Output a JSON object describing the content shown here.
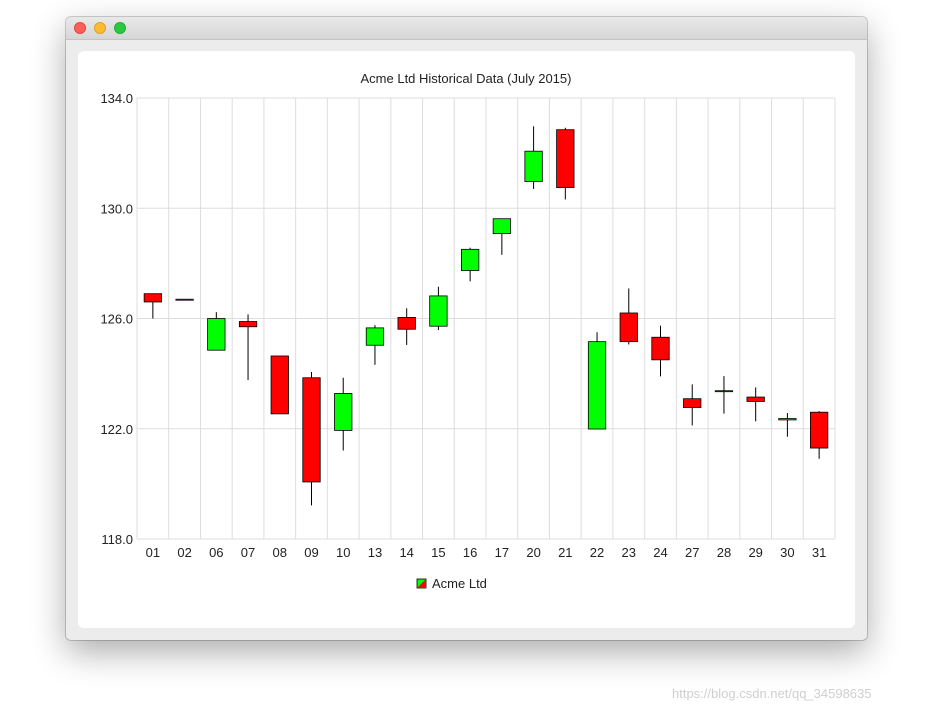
{
  "window": {
    "controls": [
      "close-button",
      "minimize-button",
      "maximize-button"
    ]
  },
  "watermark": "https://blog.csdn.net/qq_34598635",
  "chart_data": {
    "type": "candlestick",
    "title": "Acme Ltd Historical Data (July 2015)",
    "ylim": [
      118.0,
      134.0
    ],
    "yticks": [
      "134.0",
      "130.0",
      "126.0",
      "122.0",
      "118.0"
    ],
    "ytick_values": [
      134,
      130,
      126,
      122,
      118
    ],
    "grid": true,
    "legend": {
      "label": "Acme Ltd",
      "placement": "bottom-center"
    },
    "colors": {
      "increasing": "#00ff00",
      "decreasing": "#ff0000",
      "outline": "#000000",
      "grid": "#dddddd"
    },
    "candles": [
      {
        "x": "01",
        "open": 126.9,
        "high": 126.9,
        "low": 126.0,
        "close": 126.6
      },
      {
        "x": "02",
        "open": 126.7,
        "high": 126.7,
        "low": 126.7,
        "close": 126.7
      },
      {
        "x": "06",
        "open": 124.85,
        "high": 126.23,
        "low": 124.85,
        "close": 126.0
      },
      {
        "x": "07",
        "open": 125.89,
        "high": 126.15,
        "low": 123.77,
        "close": 125.7
      },
      {
        "x": "08",
        "open": 124.64,
        "high": 124.64,
        "low": 122.54,
        "close": 122.54
      },
      {
        "x": "09",
        "open": 123.85,
        "high": 124.06,
        "low": 119.22,
        "close": 120.07
      },
      {
        "x": "10",
        "open": 121.94,
        "high": 123.85,
        "low": 121.21,
        "close": 123.28
      },
      {
        "x": "13",
        "open": 125.03,
        "high": 125.76,
        "low": 124.32,
        "close": 125.66
      },
      {
        "x": "14",
        "open": 126.04,
        "high": 126.37,
        "low": 125.04,
        "close": 125.61
      },
      {
        "x": "15",
        "open": 125.72,
        "high": 127.15,
        "low": 125.58,
        "close": 126.82
      },
      {
        "x": "16",
        "open": 127.74,
        "high": 128.57,
        "low": 127.35,
        "close": 128.51
      },
      {
        "x": "17",
        "open": 129.08,
        "high": 129.62,
        "low": 128.31,
        "close": 129.62
      },
      {
        "x": "20",
        "open": 130.97,
        "high": 132.97,
        "low": 130.7,
        "close": 132.07
      },
      {
        "x": "21",
        "open": 132.85,
        "high": 132.92,
        "low": 130.32,
        "close": 130.75
      },
      {
        "x": "22",
        "open": 121.99,
        "high": 125.5,
        "low": 121.99,
        "close": 125.16
      },
      {
        "x": "23",
        "open": 126.2,
        "high": 127.09,
        "low": 125.06,
        "close": 125.16
      },
      {
        "x": "24",
        "open": 125.32,
        "high": 125.74,
        "low": 123.9,
        "close": 124.5
      },
      {
        "x": "27",
        "open": 123.09,
        "high": 123.61,
        "low": 122.12,
        "close": 122.77
      },
      {
        "x": "28",
        "open": 123.38,
        "high": 123.91,
        "low": 122.55,
        "close": 123.38
      },
      {
        "x": "29",
        "open": 123.15,
        "high": 123.5,
        "low": 122.27,
        "close": 122.99
      },
      {
        "x": "30",
        "open": 122.32,
        "high": 122.57,
        "low": 121.71,
        "close": 122.37
      },
      {
        "x": "31",
        "open": 122.6,
        "high": 122.64,
        "low": 120.91,
        "close": 121.3
      }
    ]
  }
}
